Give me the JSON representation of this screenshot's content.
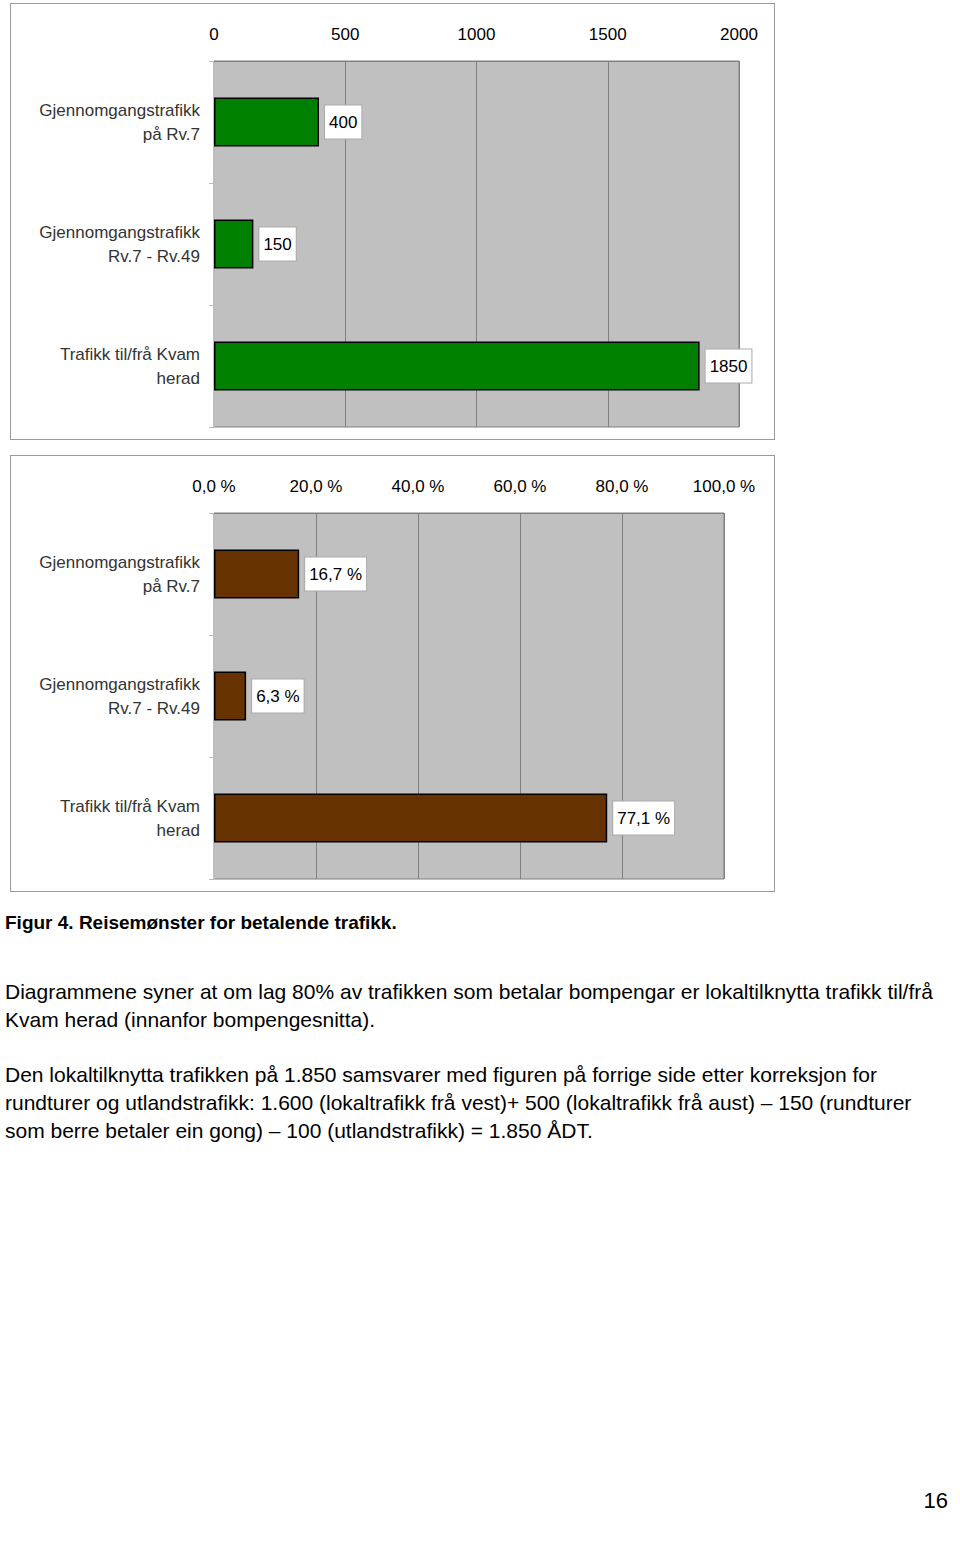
{
  "chart_data": [
    {
      "type": "bar",
      "orientation": "horizontal",
      "data_labels": true,
      "grid": true,
      "color": "#008000",
      "categories": [
        "Gjennomgangstrafikk\npå Rv.7",
        "Gjennomgangstrafikk\nRv.7 - Rv.49",
        "Trafikk til/frå Kvam\nherad"
      ],
      "values": [
        400,
        150,
        1850
      ],
      "xlim": [
        0,
        2000
      ],
      "xticks": [
        0,
        500,
        1000,
        1500,
        2000
      ]
    },
    {
      "type": "bar",
      "orientation": "horizontal",
      "data_labels": true,
      "grid": true,
      "color": "#663300",
      "categories": [
        "Gjennomgangstrafikk\npå Rv.7",
        "Gjennomgangstrafikk\nRv.7 - Rv.49",
        "Trafikk til/frå Kvam\nherad"
      ],
      "values": [
        16.7,
        6.3,
        77.1
      ],
      "value_labels": [
        "16,7 %",
        "6,3 %",
        "77,1 %"
      ],
      "xlim": [
        0,
        100
      ],
      "xticks": [
        {
          "value": 0,
          "label": "0,0 %"
        },
        {
          "value": 20,
          "label": "20,0 %"
        },
        {
          "value": 40,
          "label": "40,0 %"
        },
        {
          "value": 60,
          "label": "60,0 %"
        },
        {
          "value": 80,
          "label": "80,0 %"
        },
        {
          "value": 100,
          "label": "100,0 %"
        }
      ]
    }
  ],
  "caption": "Figur 4. Reisemønster for betalende trafikk.",
  "paragraphs": [
    "Diagrammene syner at om lag 80% av trafikken som betalar bompengar er lokaltilknytta trafikk til/frå Kvam herad (innanfor bompengesnitta).",
    "Den lokaltilknytta trafikken på 1.850 samsvarer med figuren på forrige side etter korreksjon for rundturer og utlandstrafikk: 1.600 (lokaltrafikk frå vest)+ 500 (lokaltrafikk frå aust) – 150 (rundturer som berre betaler ein gong) – 100 (utlandstrafikk) = 1.850 ÅDT."
  ],
  "page_number": "16"
}
